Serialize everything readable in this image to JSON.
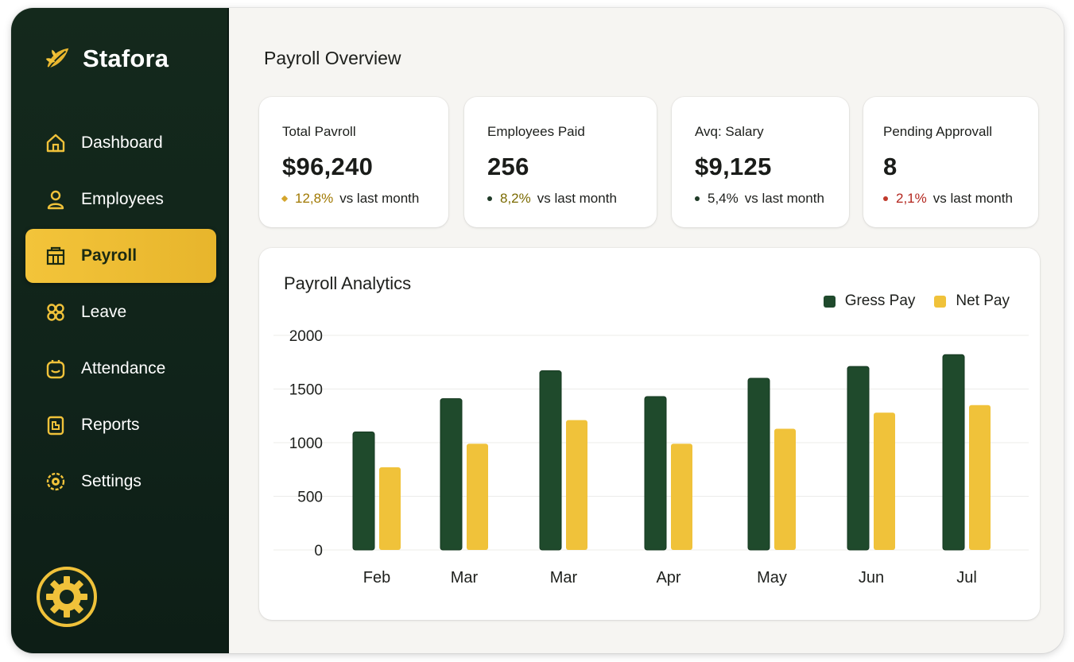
{
  "brand": {
    "name": "Stafora"
  },
  "nav": [
    {
      "label": "Dashboard",
      "icon": "home-icon"
    },
    {
      "label": "Employees",
      "icon": "user-icon"
    },
    {
      "label": "Payroll",
      "icon": "payroll-icon",
      "active": true
    },
    {
      "label": "Leave",
      "icon": "leave-icon"
    },
    {
      "label": "Attendance",
      "icon": "attendance-icon"
    },
    {
      "label": "Reports",
      "icon": "reports-icon"
    },
    {
      "label": "Settings",
      "icon": "settings-icon"
    }
  ],
  "bottom_icon": "gear-icon",
  "page": {
    "title": "Payroll Overview"
  },
  "stats": [
    {
      "label": "Total Pavroll",
      "value": "$96,240",
      "pct": "12,8%",
      "suffix": "vs last month",
      "pct_color": "#a07800",
      "dot_color": "#d4a52c"
    },
    {
      "label": "Employees Paid",
      "value": "256",
      "pct": "8,2%",
      "suffix": "vs last month",
      "pct_color": "#7a6a00",
      "dot_color": "#1f3a27"
    },
    {
      "label": "Avq: Salary",
      "value": "$9,125",
      "pct": "5,4%",
      "suffix": "vs last month",
      "pct_color": "#1d1f1c",
      "dot_color": "#1f3a27"
    },
    {
      "label": "Pending Approvall",
      "value": "8",
      "pct": "2,1%",
      "suffix": "vs last month",
      "pct_color": "#b3261e",
      "dot_color": "#c0392b"
    }
  ],
  "colors": {
    "sidebar": "#12261b",
    "accent_gold": "#f0c23a",
    "gross": "#1f4a2c",
    "net": "#f0c23a"
  },
  "chart_data": {
    "type": "bar",
    "title": "Payroll Analytics",
    "categories": [
      "Feb",
      "Mar",
      "Mar",
      "Apr",
      "May",
      "Jun",
      "Jul"
    ],
    "series": [
      {
        "name": "Gress Pay",
        "values": [
          1100,
          1410,
          1670,
          1430,
          1600,
          1710,
          1820
        ],
        "color": "#1f4a2c"
      },
      {
        "name": "Net Pay",
        "values": [
          770,
          990,
          1210,
          990,
          1130,
          1280,
          1350
        ],
        "color": "#f0c23a"
      }
    ],
    "yticks": [
      "2000",
      "1500",
      "1000",
      "500",
      "0"
    ],
    "ylim": [
      0,
      2000
    ],
    "grid": true,
    "legend": "top-right"
  }
}
